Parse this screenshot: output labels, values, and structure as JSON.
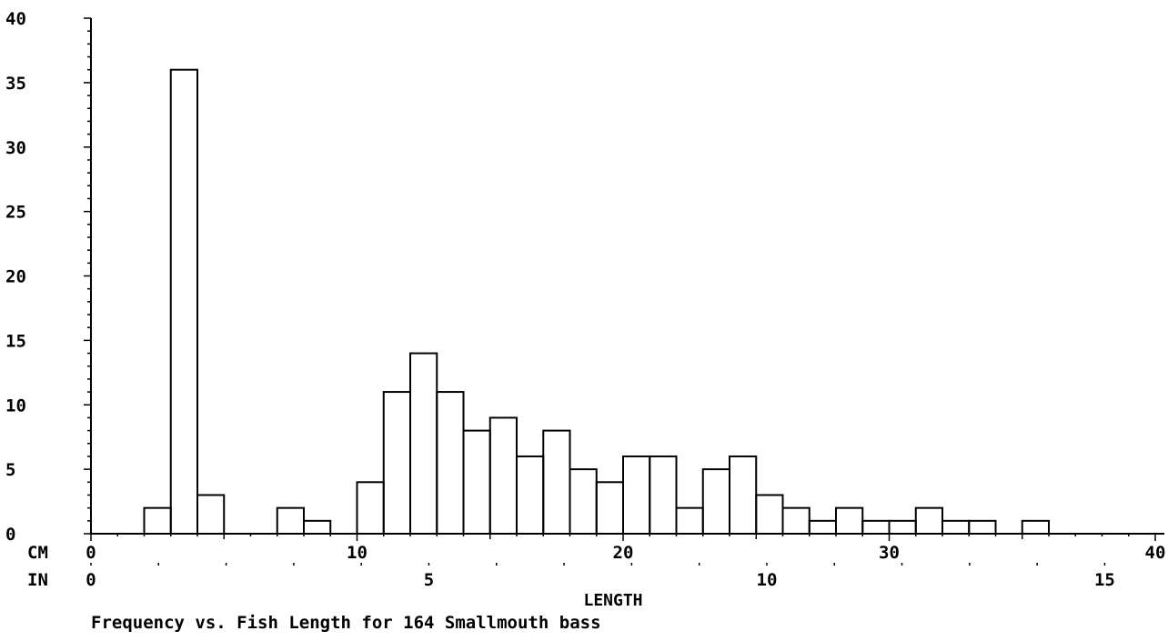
{
  "chart_data": {
    "type": "bar",
    "title": "Frequency vs. Fish Length for 164 Smallmouth bass",
    "xlabel": "LENGTH",
    "ylabel": "",
    "xlim": [
      0,
      40
    ],
    "ylim": [
      0,
      40
    ],
    "bin_width": 1,
    "grid": false,
    "colors": {
      "line": "#000000",
      "background": "#ffffff"
    },
    "y_ticks": [
      0,
      5,
      10,
      15,
      20,
      25,
      30,
      35,
      40
    ],
    "x_axis_cm": {
      "label": "CM",
      "ticks": [
        0,
        10,
        20,
        30,
        40
      ]
    },
    "x_axis_in": {
      "label": "IN",
      "ticks": [
        0,
        5,
        10,
        15
      ]
    },
    "bins": [
      {
        "start": 2,
        "count": 2
      },
      {
        "start": 3,
        "count": 36
      },
      {
        "start": 4,
        "count": 3
      },
      {
        "start": 7,
        "count": 2
      },
      {
        "start": 8,
        "count": 1
      },
      {
        "start": 10,
        "count": 4
      },
      {
        "start": 11,
        "count": 11
      },
      {
        "start": 12,
        "count": 14
      },
      {
        "start": 13,
        "count": 11
      },
      {
        "start": 14,
        "count": 8
      },
      {
        "start": 15,
        "count": 9
      },
      {
        "start": 16,
        "count": 6
      },
      {
        "start": 17,
        "count": 8
      },
      {
        "start": 18,
        "count": 5
      },
      {
        "start": 19,
        "count": 4
      },
      {
        "start": 20,
        "count": 6
      },
      {
        "start": 21,
        "count": 6
      },
      {
        "start": 22,
        "count": 2
      },
      {
        "start": 23,
        "count": 5
      },
      {
        "start": 24,
        "count": 6
      },
      {
        "start": 25,
        "count": 3
      },
      {
        "start": 26,
        "count": 2
      },
      {
        "start": 27,
        "count": 1
      },
      {
        "start": 28,
        "count": 2
      },
      {
        "start": 29,
        "count": 1
      },
      {
        "start": 30,
        "count": 1
      },
      {
        "start": 31,
        "count": 2
      },
      {
        "start": 32,
        "count": 1
      },
      {
        "start": 33,
        "count": 1
      },
      {
        "start": 35,
        "count": 1
      }
    ]
  }
}
